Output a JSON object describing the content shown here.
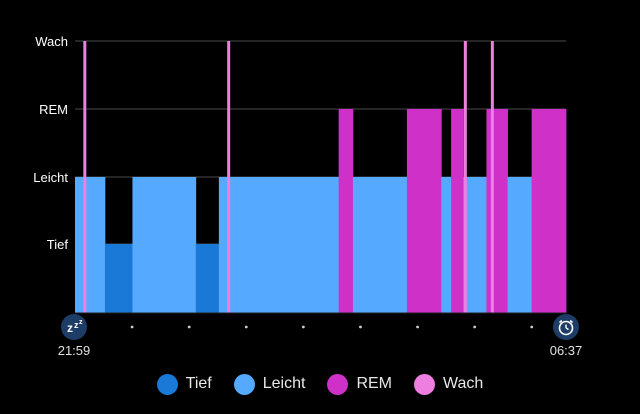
{
  "chart_data": {
    "type": "bar",
    "stage_levels": [
      "Tief",
      "Leicht",
      "REM",
      "Wach"
    ],
    "start_time": "21:59",
    "end_time": "06:37",
    "stages": {
      "Tief": "#1a78d6",
      "Leicht": "#55aaff",
      "REM": "#cf30c8",
      "Wach": "#ee7fe0"
    },
    "segments": [
      {
        "stage": "Leicht",
        "start": 0.0,
        "end": 0.061
      },
      {
        "stage": "Tief",
        "start": 0.061,
        "end": 0.117
      },
      {
        "stage": "Leicht",
        "start": 0.117,
        "end": 0.246
      },
      {
        "stage": "Tief",
        "start": 0.246,
        "end": 0.293
      },
      {
        "stage": "Leicht",
        "start": 0.293,
        "end": 0.537
      },
      {
        "stage": "REM",
        "start": 0.537,
        "end": 0.566
      },
      {
        "stage": "Leicht",
        "start": 0.566,
        "end": 0.676
      },
      {
        "stage": "REM",
        "start": 0.676,
        "end": 0.746
      },
      {
        "stage": "Leicht",
        "start": 0.746,
        "end": 0.766
      },
      {
        "stage": "REM",
        "start": 0.766,
        "end": 0.791
      },
      {
        "stage": "Leicht",
        "start": 0.791,
        "end": 0.838
      },
      {
        "stage": "REM",
        "start": 0.838,
        "end": 0.881
      },
      {
        "stage": "Leicht",
        "start": 0.881,
        "end": 0.93
      },
      {
        "stage": "REM",
        "start": 0.93,
        "end": 1.0
      }
    ],
    "wake_markers": [
      0.02,
      0.313,
      0.795,
      0.85
    ]
  },
  "legend": [
    {
      "label": "Tief",
      "color": "#1a78d6"
    },
    {
      "label": "Leicht",
      "color": "#55aaff"
    },
    {
      "label": "REM",
      "color": "#cf30c8"
    },
    {
      "label": "Wach",
      "color": "#ee7fe0"
    }
  ],
  "icons": {
    "start": "sleep-zzz-icon",
    "end": "alarm-clock-icon"
  }
}
